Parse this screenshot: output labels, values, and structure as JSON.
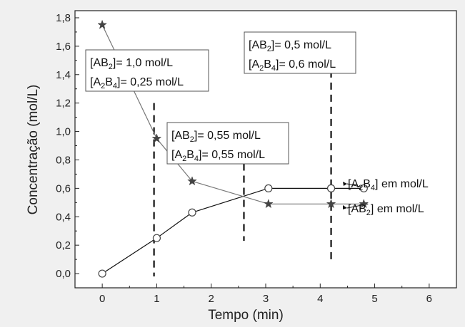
{
  "chart_data": {
    "type": "line",
    "xlabel": "Tempo (min)",
    "ylabel": "Concentração (mol/L)",
    "xlim": [
      -0.5,
      6.5
    ],
    "ylim": [
      -0.1,
      1.85
    ],
    "x_ticks": [
      "0",
      "1",
      "2",
      "3",
      "4",
      "5",
      "6"
    ],
    "y_ticks": [
      "0,0",
      "0,2",
      "0,4",
      "0,6",
      "0,8",
      "1,0",
      "1,2",
      "1,4",
      "1,6",
      "1,8"
    ],
    "grid": false,
    "series": [
      {
        "name": "[A2B4] em mol/L",
        "marker": "circle",
        "x": [
          0,
          1,
          1.65,
          3.05,
          4.2,
          4.8
        ],
        "y": [
          0,
          0.25,
          0.43,
          0.6,
          0.6,
          0.6
        ]
      },
      {
        "name": "[AB2] em mol/L",
        "marker": "star",
        "x": [
          0,
          1,
          1.65,
          3.05,
          4.2,
          4.8
        ],
        "y": [
          1.75,
          0.95,
          0.65,
          0.49,
          0.49,
          0.49
        ]
      }
    ],
    "dashed_lines_x": [
      0.95,
      2.6,
      4.2
    ],
    "annotations": [
      {
        "line1": "[AB2]= 1,0 mol/L",
        "line2": "[A2B4]= 0,25 mol/L"
      },
      {
        "line1": "[AB2]= 0,55 mol/L",
        "line2": "[A2B4]= 0,55 mol/L"
      },
      {
        "line1": "[AB2]= 0,5 mol/L",
        "line2": "[A2B4]= 0,6 mol/L"
      }
    ],
    "colors": {
      "a2b4_line": "#111111",
      "ab2_line": "#777777",
      "marker": "#444444",
      "frame": "#222222"
    }
  }
}
